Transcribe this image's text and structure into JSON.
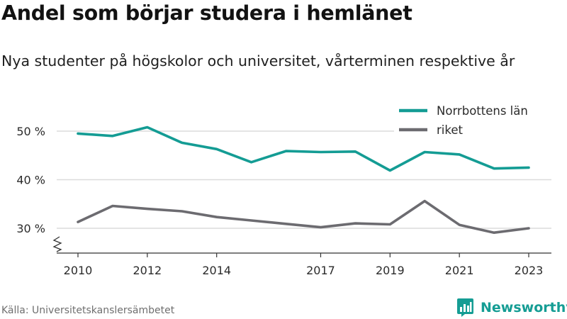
{
  "colors": {
    "norrbotten": "#149c94",
    "riket": "#6c6b70",
    "grid": "#dcdcdc",
    "axis": "#333333",
    "brand": "#159d94"
  },
  "source": "Källa: Universitetskanslersämbetet",
  "brand": {
    "name": "Newsworthy",
    "icon": "newsworthy-logo-icon"
  },
  "chart_data": {
    "type": "line",
    "title": "Andel som börjar studera i hemlänet",
    "subtitle": "Nya studenter på högskolor och universitet, vårterminen respektive år",
    "xlabel": "",
    "ylabel": "",
    "x": [
      2010,
      2011,
      2012,
      2013,
      2014,
      2015,
      2016,
      2017,
      2018,
      2019,
      2020,
      2021,
      2022,
      2023
    ],
    "xticks": [
      2010,
      2012,
      2014,
      2017,
      2019,
      2021,
      2023
    ],
    "yticks": [
      {
        "value": 30,
        "label": "30 %"
      },
      {
        "value": 40,
        "label": "40 %"
      },
      {
        "value": 50,
        "label": "50 %"
      }
    ],
    "ylim": [
      25,
      51
    ],
    "axis_break": true,
    "grid": true,
    "legend_position": "top-right",
    "series": [
      {
        "name": "Norrbottens län",
        "color": "#149c94",
        "values": [
          49.5,
          49.0,
          50.8,
          47.6,
          46.3,
          43.6,
          45.9,
          45.7,
          45.8,
          41.9,
          45.7,
          45.2,
          42.3,
          42.5
        ]
      },
      {
        "name": "riket",
        "color": "#6c6b70",
        "values": [
          31.3,
          34.6,
          34.0,
          33.5,
          32.3,
          31.6,
          30.9,
          30.2,
          31.0,
          30.8,
          35.6,
          30.7,
          29.1,
          30.0
        ]
      }
    ]
  }
}
